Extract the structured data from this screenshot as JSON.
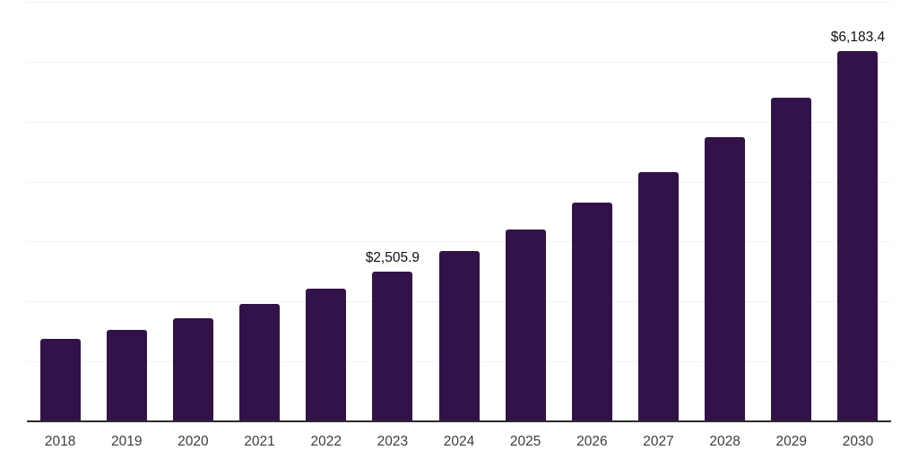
{
  "chart_data": {
    "type": "bar",
    "title": "",
    "xlabel": "",
    "ylabel": "",
    "categories": [
      "2018",
      "2019",
      "2020",
      "2021",
      "2022",
      "2023",
      "2024",
      "2025",
      "2026",
      "2027",
      "2028",
      "2029",
      "2030"
    ],
    "values": [
      1375,
      1525,
      1720,
      1958,
      2212,
      2505.9,
      2841,
      3200,
      3648,
      4158,
      4741,
      5406,
      6183.4
    ],
    "labeled_points": [
      {
        "category": "2023",
        "text": "$2,505.9"
      },
      {
        "category": "2030",
        "text": "$6,183.4"
      }
    ],
    "ylim": [
      0,
      7000
    ],
    "gridline_interval": 1000,
    "grid": true,
    "legend": "none",
    "y_axis_tick_labels_visible": false
  },
  "style": {
    "bar_color": "#331249",
    "axis_line_color": "#2b2b2b",
    "gridline_color": "#f2f2f4",
    "tick_label_color": "#3d3d3d",
    "data_label_color": "#111111",
    "background_color": "#ffffff"
  }
}
